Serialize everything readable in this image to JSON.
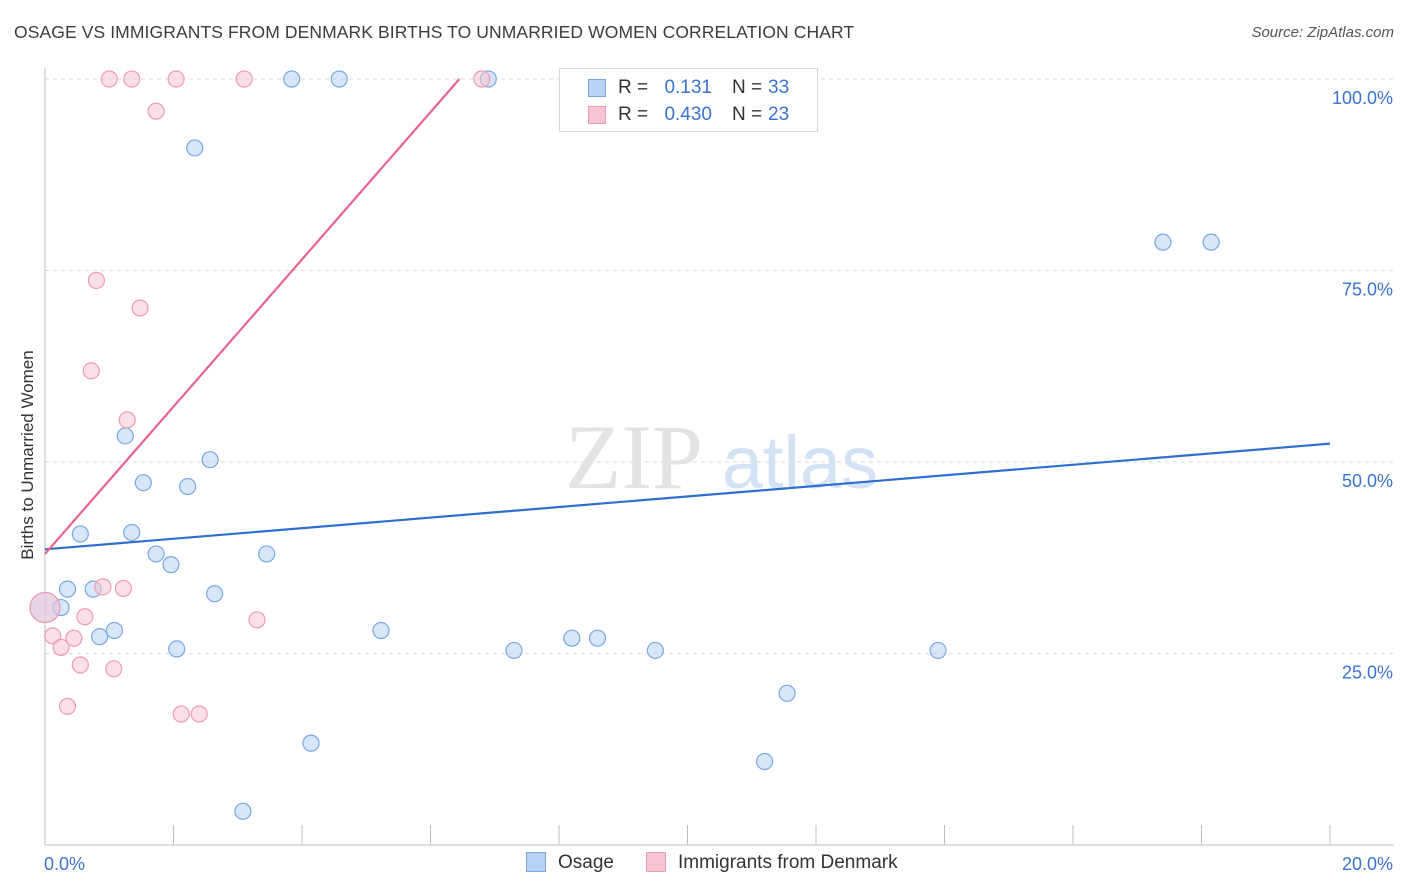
{
  "header": {
    "title": "OSAGE VS IMMIGRANTS FROM DENMARK BIRTHS TO UNMARRIED WOMEN CORRELATION CHART",
    "source": "Source: ZipAtlas.com"
  },
  "watermark": {
    "zip": "ZIP",
    "atlas": "atlas"
  },
  "legend": {
    "rows": [
      {
        "r_label": "R =",
        "r_value": "0.131",
        "n_label": "N =",
        "n_value": "33"
      },
      {
        "r_label": "R =",
        "r_value": "0.430",
        "n_label": "N =",
        "n_value": "23"
      }
    ]
  },
  "bottom_legend": {
    "series1": "Osage",
    "series2": "Immigrants from Denmark"
  },
  "colors": {
    "osage_fill": "#b7d2f4",
    "osage_stroke": "#7aa6e4",
    "osage_line": "#2f6ed0",
    "denmark_fill": "#f8c4d3",
    "denmark_stroke": "#f09ab4",
    "denmark_line": "#e8648c",
    "tick_text": "#3a72d0",
    "grid": "#d9d9d9"
  },
  "chart_data": {
    "type": "scatter",
    "title": "OSAGE VS IMMIGRANTS FROM DENMARK BIRTHS TO UNMARRIED WOMEN CORRELATION CHART",
    "xlabel": "",
    "ylabel": "Births to Unmarried Women",
    "xlim": [
      0,
      20
    ],
    "ylim": [
      0,
      102
    ],
    "x_tick_labels": [
      {
        "value": 0,
        "label": "0.0%"
      },
      {
        "value": 20,
        "label": "20.0%"
      }
    ],
    "y_tick_labels": [
      {
        "value": 25,
        "label": "25.0%"
      },
      {
        "value": 50,
        "label": "50.0%"
      },
      {
        "value": 75,
        "label": "75.0%"
      },
      {
        "value": 100,
        "label": "100.0%"
      }
    ],
    "series": [
      {
        "name": "Osage",
        "r": 0.131,
        "n": 33,
        "trend": {
          "x": [
            0,
            20
          ],
          "y": [
            38.6,
            52.4
          ]
        },
        "points": [
          [
            0.0,
            31.0
          ],
          [
            0.25,
            31.0
          ],
          [
            0.35,
            33.4
          ],
          [
            0.55,
            40.6
          ],
          [
            0.75,
            33.4
          ],
          [
            0.85,
            27.2
          ],
          [
            1.08,
            28.0
          ],
          [
            1.25,
            53.4
          ],
          [
            1.35,
            40.8
          ],
          [
            1.53,
            47.3
          ],
          [
            1.73,
            38.0
          ],
          [
            1.96,
            36.6
          ],
          [
            2.05,
            25.6
          ],
          [
            2.22,
            46.8
          ],
          [
            2.33,
            91.0
          ],
          [
            2.57,
            50.3
          ],
          [
            2.64,
            32.8
          ],
          [
            3.08,
            4.4
          ],
          [
            3.45,
            38.0
          ],
          [
            3.84,
            100.0
          ],
          [
            4.14,
            13.3
          ],
          [
            4.58,
            100.0
          ],
          [
            5.23,
            28.0
          ],
          [
            6.9,
            100.0
          ],
          [
            7.3,
            25.4
          ],
          [
            8.2,
            27.0
          ],
          [
            8.6,
            27.0
          ],
          [
            9.5,
            25.4
          ],
          [
            11.2,
            10.9
          ],
          [
            11.55,
            19.8
          ],
          [
            13.9,
            25.4
          ],
          [
            17.4,
            78.7
          ],
          [
            18.15,
            78.7
          ]
        ]
      },
      {
        "name": "Immigrants from Denmark",
        "r": 0.43,
        "n": 23,
        "trend": {
          "x": [
            0,
            6.45
          ],
          "y": [
            38.0,
            100.0
          ]
        },
        "points": [
          [
            0.0,
            31.0
          ],
          [
            0.12,
            27.3
          ],
          [
            0.25,
            25.8
          ],
          [
            0.35,
            18.1
          ],
          [
            0.45,
            27.0
          ],
          [
            0.55,
            23.5
          ],
          [
            0.62,
            29.8
          ],
          [
            0.72,
            61.9
          ],
          [
            0.8,
            73.7
          ],
          [
            0.9,
            33.7
          ],
          [
            1.0,
            100.0
          ],
          [
            1.07,
            23.0
          ],
          [
            1.22,
            33.5
          ],
          [
            1.28,
            55.5
          ],
          [
            1.35,
            100.0
          ],
          [
            1.48,
            70.1
          ],
          [
            1.73,
            95.8
          ],
          [
            2.04,
            100.0
          ],
          [
            2.12,
            17.1
          ],
          [
            2.4,
            17.1
          ],
          [
            3.1,
            100.0
          ],
          [
            3.3,
            29.4
          ],
          [
            6.8,
            100.0
          ]
        ]
      }
    ]
  }
}
